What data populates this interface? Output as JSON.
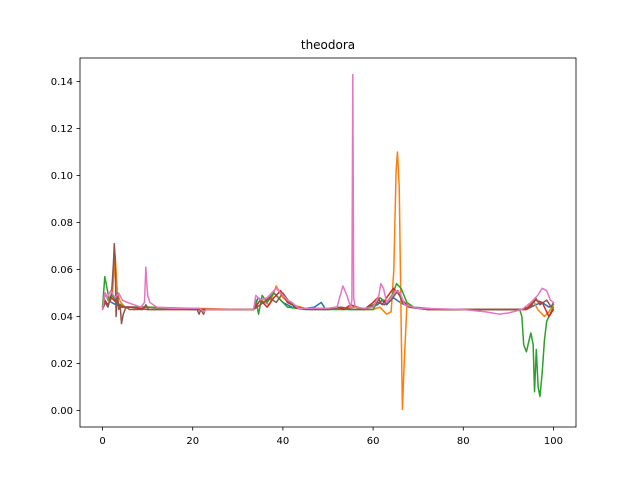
{
  "chart_data": {
    "type": "line",
    "title": "theodora",
    "xlabel": "",
    "ylabel": "",
    "xlim": [
      -5,
      105
    ],
    "ylim": [
      -0.007,
      0.15
    ],
    "xticks": [
      0,
      20,
      40,
      60,
      80,
      100
    ],
    "xtick_labels": [
      "0",
      "20",
      "40",
      "60",
      "80",
      "100"
    ],
    "yticks": [
      0.0,
      0.02,
      0.04,
      0.06,
      0.08,
      0.1,
      0.12,
      0.14
    ],
    "ytick_labels": [
      "0.00",
      "0.02",
      "0.04",
      "0.06",
      "0.08",
      "0.10",
      "0.12",
      "0.14"
    ],
    "grid": false,
    "series": [
      {
        "color": "#1f77b4",
        "points": [
          [
            0,
            0.044
          ],
          [
            0.6,
            0.05
          ],
          [
            1.2,
            0.047
          ],
          [
            2,
            0.046
          ],
          [
            3,
            0.045
          ],
          [
            5,
            0.044
          ],
          [
            10,
            0.044
          ],
          [
            15,
            0.0435
          ],
          [
            20,
            0.043
          ],
          [
            30,
            0.043
          ],
          [
            33.5,
            0.043
          ],
          [
            34.5,
            0.048
          ],
          [
            36,
            0.046
          ],
          [
            38,
            0.05
          ],
          [
            40,
            0.046
          ],
          [
            42,
            0.044
          ],
          [
            45,
            0.0435
          ],
          [
            47,
            0.044
          ],
          [
            48.5,
            0.046
          ],
          [
            49.5,
            0.043
          ],
          [
            52,
            0.044
          ],
          [
            54,
            0.0435
          ],
          [
            56,
            0.044
          ],
          [
            58,
            0.043
          ],
          [
            61,
            0.045
          ],
          [
            62,
            0.047
          ],
          [
            63,
            0.045
          ],
          [
            64.5,
            0.048
          ],
          [
            66,
            0.046
          ],
          [
            68,
            0.044
          ],
          [
            72,
            0.043
          ],
          [
            80,
            0.043
          ],
          [
            90,
            0.043
          ],
          [
            94,
            0.043
          ],
          [
            96,
            0.045
          ],
          [
            97.5,
            0.046
          ],
          [
            99,
            0.044
          ],
          [
            100,
            0.045
          ]
        ]
      },
      {
        "color": "#ff7f0e",
        "points": [
          [
            0,
            0.045
          ],
          [
            0.6,
            0.05
          ],
          [
            1.3,
            0.047
          ],
          [
            2.2,
            0.05
          ],
          [
            2.8,
            0.066
          ],
          [
            3.3,
            0.05
          ],
          [
            4,
            0.046
          ],
          [
            5,
            0.044
          ],
          [
            10,
            0.044
          ],
          [
            20,
            0.0435
          ],
          [
            30,
            0.043
          ],
          [
            33.5,
            0.043
          ],
          [
            35,
            0.047
          ],
          [
            37,
            0.045
          ],
          [
            38.5,
            0.053
          ],
          [
            40,
            0.048
          ],
          [
            42,
            0.045
          ],
          [
            45,
            0.0435
          ],
          [
            50,
            0.043
          ],
          [
            56,
            0.044
          ],
          [
            58,
            0.043
          ],
          [
            60,
            0.043
          ],
          [
            61.5,
            0.044
          ],
          [
            63,
            0.041
          ],
          [
            64,
            0.042
          ],
          [
            64.6,
            0.06
          ],
          [
            65.1,
            0.102
          ],
          [
            65.4,
            0.11
          ],
          [
            65.8,
            0.095
          ],
          [
            66.2,
            0.04
          ],
          [
            66.5,
            0.0005
          ],
          [
            66.9,
            0.02
          ],
          [
            67.5,
            0.045
          ],
          [
            69,
            0.044
          ],
          [
            72,
            0.043
          ],
          [
            80,
            0.043
          ],
          [
            90,
            0.043
          ],
          [
            94,
            0.043
          ],
          [
            95.5,
            0.047
          ],
          [
            96.5,
            0.043
          ],
          [
            98,
            0.04
          ],
          [
            99,
            0.042
          ],
          [
            100,
            0.045
          ]
        ]
      },
      {
        "color": "#2ca02c",
        "points": [
          [
            0,
            0.044
          ],
          [
            0.5,
            0.057
          ],
          [
            1,
            0.052
          ],
          [
            1.5,
            0.047
          ],
          [
            2.2,
            0.049
          ],
          [
            3,
            0.046
          ],
          [
            4,
            0.045
          ],
          [
            5,
            0.044
          ],
          [
            10,
            0.044
          ],
          [
            20,
            0.043
          ],
          [
            30,
            0.043
          ],
          [
            33.5,
            0.043
          ],
          [
            34,
            0.047
          ],
          [
            34.6,
            0.041
          ],
          [
            35.4,
            0.049
          ],
          [
            36.5,
            0.046
          ],
          [
            38,
            0.05
          ],
          [
            39.5,
            0.047
          ],
          [
            41,
            0.044
          ],
          [
            45,
            0.043
          ],
          [
            50,
            0.043
          ],
          [
            55,
            0.043
          ],
          [
            60,
            0.043
          ],
          [
            61.5,
            0.048
          ],
          [
            63,
            0.046
          ],
          [
            64.2,
            0.049
          ],
          [
            65.2,
            0.054
          ],
          [
            66.2,
            0.052
          ],
          [
            67.5,
            0.046
          ],
          [
            69,
            0.044
          ],
          [
            75,
            0.043
          ],
          [
            85,
            0.043
          ],
          [
            92.5,
            0.043
          ],
          [
            93,
            0.04
          ],
          [
            93.4,
            0.028
          ],
          [
            94,
            0.025
          ],
          [
            94.6,
            0.03
          ],
          [
            95,
            0.033
          ],
          [
            95.5,
            0.028
          ],
          [
            95.8,
            0.008
          ],
          [
            96.2,
            0.026
          ],
          [
            96.6,
            0.01
          ],
          [
            97,
            0.006
          ],
          [
            97.5,
            0.016
          ],
          [
            98,
            0.03
          ],
          [
            98.5,
            0.038
          ],
          [
            99,
            0.04
          ],
          [
            99.5,
            0.042
          ],
          [
            100,
            0.044
          ]
        ]
      },
      {
        "color": "#d62728",
        "points": [
          [
            0,
            0.044
          ],
          [
            0.5,
            0.047
          ],
          [
            1.2,
            0.045
          ],
          [
            2,
            0.048
          ],
          [
            3,
            0.046
          ],
          [
            4,
            0.044
          ],
          [
            6,
            0.044
          ],
          [
            10,
            0.043
          ],
          [
            20,
            0.043
          ],
          [
            22,
            0.043
          ],
          [
            30,
            0.043
          ],
          [
            33.5,
            0.043
          ],
          [
            35,
            0.047
          ],
          [
            36.5,
            0.044
          ],
          [
            38,
            0.048
          ],
          [
            39.5,
            0.051
          ],
          [
            41,
            0.046
          ],
          [
            43,
            0.044
          ],
          [
            45,
            0.0435
          ],
          [
            50,
            0.0435
          ],
          [
            52,
            0.044
          ],
          [
            53.5,
            0.043
          ],
          [
            55,
            0.045
          ],
          [
            56.5,
            0.044
          ],
          [
            58,
            0.043
          ],
          [
            60,
            0.046
          ],
          [
            61,
            0.048
          ],
          [
            62,
            0.045
          ],
          [
            63,
            0.048
          ],
          [
            64.5,
            0.052
          ],
          [
            65.5,
            0.05
          ],
          [
            66.5,
            0.047
          ],
          [
            68,
            0.044
          ],
          [
            72,
            0.043
          ],
          [
            80,
            0.043
          ],
          [
            90,
            0.043
          ],
          [
            93,
            0.043
          ],
          [
            94.5,
            0.044
          ],
          [
            96,
            0.047
          ],
          [
            97.5,
            0.046
          ],
          [
            99,
            0.04
          ],
          [
            100,
            0.043
          ]
        ]
      },
      {
        "color": "#8c564b",
        "points": [
          [
            0,
            0.043
          ],
          [
            0.6,
            0.046
          ],
          [
            1.2,
            0.044
          ],
          [
            2,
            0.05
          ],
          [
            2.4,
            0.062
          ],
          [
            2.6,
            0.071
          ],
          [
            2.8,
            0.065
          ],
          [
            3,
            0.04
          ],
          [
            3.3,
            0.05
          ],
          [
            3.6,
            0.043
          ],
          [
            3.9,
            0.045
          ],
          [
            4.2,
            0.037
          ],
          [
            4.6,
            0.041
          ],
          [
            5.2,
            0.044
          ],
          [
            6,
            0.043
          ],
          [
            9,
            0.043
          ],
          [
            9.6,
            0.045
          ],
          [
            10.2,
            0.043
          ],
          [
            15,
            0.043
          ],
          [
            21,
            0.043
          ],
          [
            21.4,
            0.041
          ],
          [
            21.8,
            0.043
          ],
          [
            22.4,
            0.041
          ],
          [
            22.8,
            0.043
          ],
          [
            30,
            0.043
          ],
          [
            33.5,
            0.043
          ],
          [
            35,
            0.045
          ],
          [
            37,
            0.048
          ],
          [
            38.5,
            0.046
          ],
          [
            40,
            0.05
          ],
          [
            41.5,
            0.046
          ],
          [
            43,
            0.0435
          ],
          [
            46,
            0.043
          ],
          [
            50,
            0.043
          ],
          [
            53,
            0.044
          ],
          [
            55,
            0.043
          ],
          [
            58,
            0.043
          ],
          [
            61,
            0.046
          ],
          [
            62.5,
            0.045
          ],
          [
            64,
            0.047
          ],
          [
            65.5,
            0.051
          ],
          [
            66.5,
            0.046
          ],
          [
            68,
            0.044
          ],
          [
            72,
            0.043
          ],
          [
            80,
            0.043
          ],
          [
            90,
            0.043
          ],
          [
            94,
            0.043
          ],
          [
            95,
            0.044
          ],
          [
            96,
            0.048
          ],
          [
            97,
            0.045
          ],
          [
            98.5,
            0.047
          ],
          [
            99.5,
            0.044
          ],
          [
            100,
            0.046
          ]
        ]
      },
      {
        "color": "#e377c2",
        "points": [
          [
            0,
            0.043
          ],
          [
            0.5,
            0.05
          ],
          [
            1,
            0.048
          ],
          [
            1.8,
            0.051
          ],
          [
            2.8,
            0.048
          ],
          [
            3.6,
            0.05
          ],
          [
            4.4,
            0.047
          ],
          [
            5.5,
            0.046
          ],
          [
            7,
            0.045
          ],
          [
            8.5,
            0.044
          ],
          [
            9.3,
            0.046
          ],
          [
            9.6,
            0.061
          ],
          [
            10,
            0.049
          ],
          [
            10.5,
            0.046
          ],
          [
            12,
            0.044
          ],
          [
            15,
            0.0435
          ],
          [
            20,
            0.0435
          ],
          [
            21.5,
            0.0435
          ],
          [
            22.5,
            0.042
          ],
          [
            23,
            0.043
          ],
          [
            30,
            0.043
          ],
          [
            33.5,
            0.043
          ],
          [
            34,
            0.049
          ],
          [
            35,
            0.047
          ],
          [
            36.5,
            0.048
          ],
          [
            38.5,
            0.052
          ],
          [
            40,
            0.049
          ],
          [
            41,
            0.047
          ],
          [
            42,
            0.046
          ],
          [
            43.5,
            0.0435
          ],
          [
            50,
            0.0435
          ],
          [
            52,
            0.044
          ],
          [
            53.3,
            0.053
          ],
          [
            54.2,
            0.049
          ],
          [
            55,
            0.044
          ],
          [
            55.3,
            0.047
          ],
          [
            55.5,
            0.143
          ],
          [
            55.7,
            0.048
          ],
          [
            56,
            0.044
          ],
          [
            58,
            0.0435
          ],
          [
            60,
            0.044
          ],
          [
            61.3,
            0.049
          ],
          [
            61.7,
            0.054
          ],
          [
            62.3,
            0.052
          ],
          [
            63,
            0.046
          ],
          [
            64,
            0.048
          ],
          [
            65,
            0.051
          ],
          [
            66,
            0.05
          ],
          [
            67,
            0.045
          ],
          [
            70,
            0.0435
          ],
          [
            80,
            0.043
          ],
          [
            85,
            0.042
          ],
          [
            88,
            0.041
          ],
          [
            90,
            0.0415
          ],
          [
            93,
            0.043
          ],
          [
            95,
            0.046
          ],
          [
            96.5,
            0.049
          ],
          [
            97.5,
            0.052
          ],
          [
            98.5,
            0.051
          ],
          [
            99.3,
            0.047
          ],
          [
            100,
            0.046
          ]
        ]
      }
    ]
  }
}
